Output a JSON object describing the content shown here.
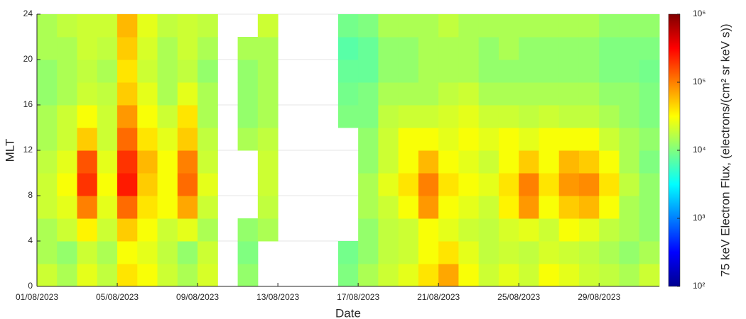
{
  "chart_data": {
    "type": "heatmap",
    "x_label": "Date",
    "y_label": "MLT",
    "colorbar_label": "75 keV Electron Flux, (electrons/(cm² sr keV s))",
    "x": [
      "01/08/2023",
      "02/08/2023",
      "03/08/2023",
      "04/08/2023",
      "05/08/2023",
      "06/08/2023",
      "07/08/2023",
      "08/08/2023",
      "09/08/2023",
      "10/08/2023",
      "11/08/2023",
      "12/08/2023",
      "13/08/2023",
      "14/08/2023",
      "15/08/2023",
      "16/08/2023",
      "17/08/2023",
      "18/08/2023",
      "19/08/2023",
      "20/08/2023",
      "21/08/2023",
      "22/08/2023",
      "23/08/2023",
      "24/08/2023",
      "25/08/2023",
      "26/08/2023",
      "27/08/2023",
      "28/08/2023",
      "29/08/2023",
      "30/08/2023",
      "31/08/2023"
    ],
    "xticks": [
      "01/08/2023",
      "05/08/2023",
      "09/08/2023",
      "13/08/2023",
      "17/08/2023",
      "21/08/2023",
      "25/08/2023",
      "29/08/2023"
    ],
    "y": [
      1,
      3,
      5,
      7,
      9,
      11,
      13,
      15,
      17,
      19,
      21,
      23
    ],
    "ylim": [
      0,
      24
    ],
    "yticks": [
      0,
      4,
      8,
      12,
      16,
      20,
      24
    ],
    "grid": true,
    "color_scale": "log",
    "colormap": "jet",
    "clim": [
      100,
      1000000
    ],
    "cticks": [
      {
        "value": 100,
        "label": "10²"
      },
      {
        "value": 1000,
        "label": "10³"
      },
      {
        "value": 10000,
        "label": "10⁴"
      },
      {
        "value": 100000,
        "label": "10⁵"
      },
      {
        "value": 1000000,
        "label": "10⁶"
      }
    ],
    "z": [
      [
        20000,
        15000,
        25000,
        18000,
        40000,
        30000,
        20000,
        15000,
        22000,
        null,
        12000,
        null,
        null,
        null,
        null,
        10000,
        15000,
        20000,
        25000,
        40000,
        70000,
        30000,
        20000,
        25000,
        20000,
        30000,
        25000,
        20000,
        18000,
        15000,
        20000
      ],
      [
        15000,
        12000,
        20000,
        15000,
        30000,
        25000,
        18000,
        12000,
        20000,
        null,
        10000,
        null,
        null,
        null,
        null,
        9000,
        12000,
        18000,
        20000,
        30000,
        40000,
        25000,
        18000,
        20000,
        18000,
        22000,
        20000,
        18000,
        15000,
        12000,
        15000
      ],
      [
        15000,
        20000,
        35000,
        20000,
        50000,
        30000,
        20000,
        25000,
        15000,
        null,
        12000,
        15000,
        null,
        null,
        null,
        null,
        12000,
        18000,
        20000,
        30000,
        25000,
        20000,
        18000,
        22000,
        25000,
        20000,
        30000,
        25000,
        18000,
        15000,
        12000
      ],
      [
        20000,
        25000,
        100000,
        25000,
        120000,
        40000,
        30000,
        70000,
        20000,
        null,
        null,
        18000,
        null,
        null,
        null,
        null,
        15000,
        20000,
        30000,
        80000,
        30000,
        25000,
        20000,
        35000,
        80000,
        30000,
        50000,
        60000,
        30000,
        15000,
        12000
      ],
      [
        20000,
        30000,
        200000,
        30000,
        250000,
        50000,
        30000,
        120000,
        25000,
        null,
        null,
        20000,
        null,
        null,
        null,
        null,
        15000,
        25000,
        40000,
        100000,
        40000,
        30000,
        25000,
        40000,
        100000,
        40000,
        80000,
        90000,
        40000,
        18000,
        12000
      ],
      [
        18000,
        25000,
        150000,
        25000,
        200000,
        60000,
        30000,
        100000,
        20000,
        null,
        null,
        20000,
        null,
        null,
        null,
        null,
        12000,
        20000,
        30000,
        60000,
        30000,
        25000,
        20000,
        30000,
        50000,
        30000,
        60000,
        50000,
        30000,
        15000,
        10000
      ],
      [
        15000,
        20000,
        50000,
        20000,
        120000,
        40000,
        25000,
        50000,
        18000,
        null,
        15000,
        18000,
        null,
        null,
        null,
        null,
        12000,
        20000,
        30000,
        30000,
        25000,
        30000,
        25000,
        30000,
        25000,
        30000,
        30000,
        30000,
        20000,
        15000,
        12000
      ],
      [
        15000,
        20000,
        30000,
        20000,
        80000,
        30000,
        20000,
        40000,
        15000,
        null,
        12000,
        15000,
        null,
        null,
        null,
        10000,
        10000,
        18000,
        20000,
        20000,
        22000,
        25000,
        20000,
        20000,
        18000,
        20000,
        18000,
        18000,
        15000,
        12000,
        10000
      ],
      [
        12000,
        15000,
        20000,
        18000,
        50000,
        25000,
        15000,
        25000,
        15000,
        null,
        12000,
        15000,
        null,
        null,
        null,
        9000,
        10000,
        15000,
        15000,
        15000,
        18000,
        20000,
        15000,
        15000,
        15000,
        15000,
        15000,
        15000,
        12000,
        12000,
        10000
      ],
      [
        12000,
        15000,
        18000,
        15000,
        40000,
        20000,
        15000,
        18000,
        12000,
        null,
        12000,
        15000,
        null,
        null,
        null,
        8000,
        8000,
        12000,
        12000,
        15000,
        15000,
        15000,
        12000,
        12000,
        12000,
        12000,
        12000,
        12000,
        10000,
        10000,
        9000
      ],
      [
        15000,
        15000,
        20000,
        18000,
        50000,
        22000,
        15000,
        20000,
        15000,
        null,
        15000,
        15000,
        null,
        null,
        null,
        7000,
        8000,
        12000,
        12000,
        15000,
        15000,
        15000,
        12000,
        15000,
        12000,
        12000,
        12000,
        12000,
        10000,
        10000,
        10000
      ],
      [
        15000,
        18000,
        20000,
        20000,
        60000,
        25000,
        18000,
        20000,
        18000,
        null,
        null,
        20000,
        null,
        null,
        null,
        9000,
        10000,
        15000,
        15000,
        15000,
        18000,
        15000,
        15000,
        15000,
        15000,
        15000,
        15000,
        15000,
        12000,
        12000,
        12000
      ]
    ]
  }
}
